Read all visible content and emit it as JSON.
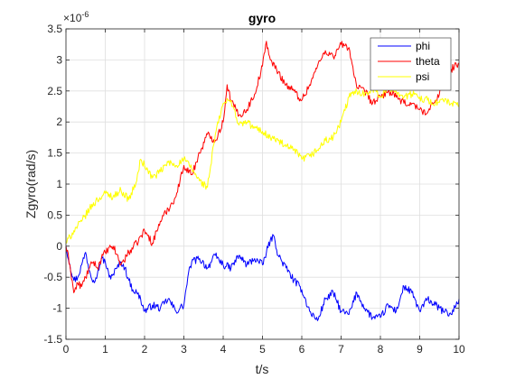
{
  "chart_data": {
    "type": "line",
    "title": "gyro",
    "xlabel": "t/s",
    "ylabel": "Zgyro(rad/s)",
    "y_exponent_label": "10",
    "y_exponent_power": "-6",
    "xlim": [
      0,
      10
    ],
    "ylim": [
      -1.5,
      3.5
    ],
    "xticks": [
      0,
      1,
      2,
      3,
      4,
      5,
      6,
      7,
      8,
      9,
      10
    ],
    "yticks": [
      -1.5,
      -1,
      -0.5,
      0,
      0.5,
      1,
      1.5,
      2,
      2.5,
      3,
      3.5
    ],
    "xtick_labels": [
      "0",
      "1",
      "2",
      "3",
      "4",
      "5",
      "6",
      "7",
      "8",
      "9",
      "10"
    ],
    "ytick_labels": [
      "-1.5",
      "-1",
      "-0.5",
      "0",
      "0.5",
      "1",
      "1.5",
      "2",
      "2.5",
      "3",
      "3.5"
    ],
    "grid": true,
    "legend_position": "top-right",
    "series": [
      {
        "name": "phi",
        "color": "#0000ff",
        "x": [
          0,
          0.1,
          0.2,
          0.3,
          0.4,
          0.5,
          0.6,
          0.7,
          0.8,
          0.9,
          1.0,
          1.1,
          1.2,
          1.3,
          1.4,
          1.5,
          1.6,
          1.7,
          1.8,
          1.9,
          2.0,
          2.2,
          2.4,
          2.6,
          2.8,
          3.0,
          3.1,
          3.2,
          3.4,
          3.6,
          3.8,
          4.0,
          4.2,
          4.4,
          4.6,
          4.8,
          5.0,
          5.2,
          5.3,
          5.4,
          5.6,
          5.8,
          6.0,
          6.2,
          6.4,
          6.6,
          6.8,
          7.0,
          7.2,
          7.4,
          7.6,
          7.8,
          8.0,
          8.2,
          8.4,
          8.6,
          8.8,
          9.0,
          9.2,
          9.4,
          9.6,
          9.8,
          10.0
        ],
        "y": [
          0.0,
          -0.3,
          -0.55,
          -0.5,
          -0.3,
          -0.1,
          -0.4,
          -0.55,
          -0.45,
          -0.2,
          -0.25,
          -0.5,
          -0.45,
          -0.35,
          -0.25,
          -0.35,
          -0.55,
          -0.7,
          -0.75,
          -0.85,
          -1.05,
          -0.95,
          -1.0,
          -0.85,
          -1.05,
          -0.95,
          -0.5,
          -0.25,
          -0.2,
          -0.35,
          -0.15,
          -0.3,
          -0.35,
          -0.15,
          -0.3,
          -0.2,
          -0.3,
          0.1,
          0.15,
          -0.15,
          -0.35,
          -0.55,
          -0.7,
          -1.05,
          -1.2,
          -0.85,
          -0.75,
          -1.05,
          -1.1,
          -0.75,
          -1.0,
          -1.15,
          -1.15,
          -0.95,
          -1.05,
          -0.65,
          -0.75,
          -1.05,
          -0.85,
          -0.95,
          -1.05,
          -1.1,
          -0.85
        ]
      },
      {
        "name": "theta",
        "color": "#ff0000",
        "x": [
          0,
          0.1,
          0.2,
          0.3,
          0.4,
          0.5,
          0.6,
          0.7,
          0.8,
          0.9,
          1.0,
          1.2,
          1.4,
          1.6,
          1.8,
          2.0,
          2.2,
          2.4,
          2.6,
          2.8,
          3.0,
          3.2,
          3.4,
          3.6,
          3.8,
          4.0,
          4.1,
          4.2,
          4.4,
          4.6,
          4.8,
          5.0,
          5.1,
          5.2,
          5.4,
          5.6,
          5.8,
          6.0,
          6.2,
          6.4,
          6.6,
          6.8,
          7.0,
          7.2,
          7.4,
          7.6,
          7.8,
          8.0,
          8.2,
          8.4,
          8.6,
          8.8,
          9.0,
          9.2,
          9.4,
          9.6,
          9.8,
          10.0
        ],
        "y": [
          0.0,
          -0.3,
          -0.75,
          -0.6,
          -0.65,
          -0.5,
          -0.35,
          -0.25,
          -0.35,
          -0.2,
          -0.1,
          0.0,
          -0.3,
          -0.1,
          0.05,
          0.25,
          0.05,
          0.4,
          0.6,
          0.8,
          1.3,
          1.15,
          1.5,
          1.8,
          1.7,
          2.0,
          2.6,
          2.35,
          2.1,
          2.2,
          2.45,
          2.9,
          3.3,
          3.0,
          2.8,
          2.6,
          2.5,
          2.35,
          2.6,
          2.9,
          3.15,
          3.05,
          3.25,
          3.2,
          2.55,
          2.5,
          2.3,
          2.4,
          2.5,
          2.4,
          2.3,
          2.3,
          2.2,
          2.15,
          2.35,
          2.6,
          2.85,
          2.95
        ]
      },
      {
        "name": "psi",
        "color": "#ffff00",
        "x": [
          0,
          0.2,
          0.4,
          0.6,
          0.8,
          1.0,
          1.2,
          1.4,
          1.6,
          1.8,
          1.9,
          2.0,
          2.2,
          2.4,
          2.6,
          2.8,
          3.0,
          3.2,
          3.4,
          3.6,
          3.8,
          4.0,
          4.2,
          4.4,
          4.6,
          4.8,
          5.0,
          5.2,
          5.4,
          5.6,
          5.8,
          6.0,
          6.2,
          6.4,
          6.6,
          6.8,
          7.0,
          7.2,
          7.4,
          7.6,
          7.8,
          8.0,
          8.2,
          8.4,
          8.6,
          8.8,
          9.0,
          9.2,
          9.4,
          9.6,
          9.8,
          10.0
        ],
        "y": [
          0.05,
          0.25,
          0.4,
          0.6,
          0.75,
          0.85,
          0.8,
          0.9,
          0.75,
          1.05,
          1.4,
          1.3,
          1.1,
          1.2,
          1.35,
          1.3,
          1.4,
          1.25,
          1.05,
          0.95,
          1.8,
          2.3,
          2.35,
          1.95,
          2.0,
          1.9,
          1.85,
          1.75,
          1.7,
          1.6,
          1.55,
          1.4,
          1.45,
          1.55,
          1.7,
          1.75,
          2.0,
          2.4,
          2.5,
          2.45,
          2.55,
          2.4,
          2.55,
          2.5,
          2.4,
          2.45,
          2.4,
          2.35,
          2.3,
          2.35,
          2.3,
          2.25
        ]
      }
    ]
  }
}
